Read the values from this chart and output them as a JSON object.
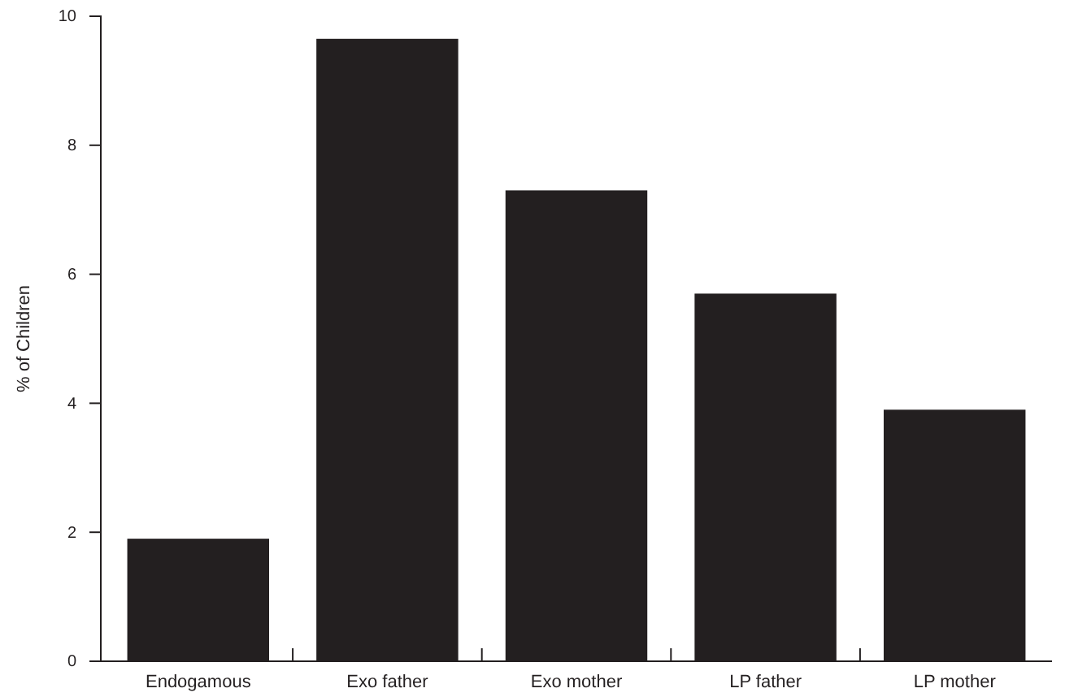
{
  "chart_data": {
    "type": "bar",
    "ylabel": "% of Children",
    "categories": [
      "Endogamous",
      "Exo father",
      "Exo mother",
      "LP father",
      "LP mother"
    ],
    "values": [
      1.9,
      9.65,
      7.3,
      5.7,
      3.9
    ],
    "color": "#231f20",
    "ylim": [
      0,
      10
    ],
    "yticks": [
      0,
      2,
      4,
      6,
      8,
      10
    ],
    "grid": false
  }
}
